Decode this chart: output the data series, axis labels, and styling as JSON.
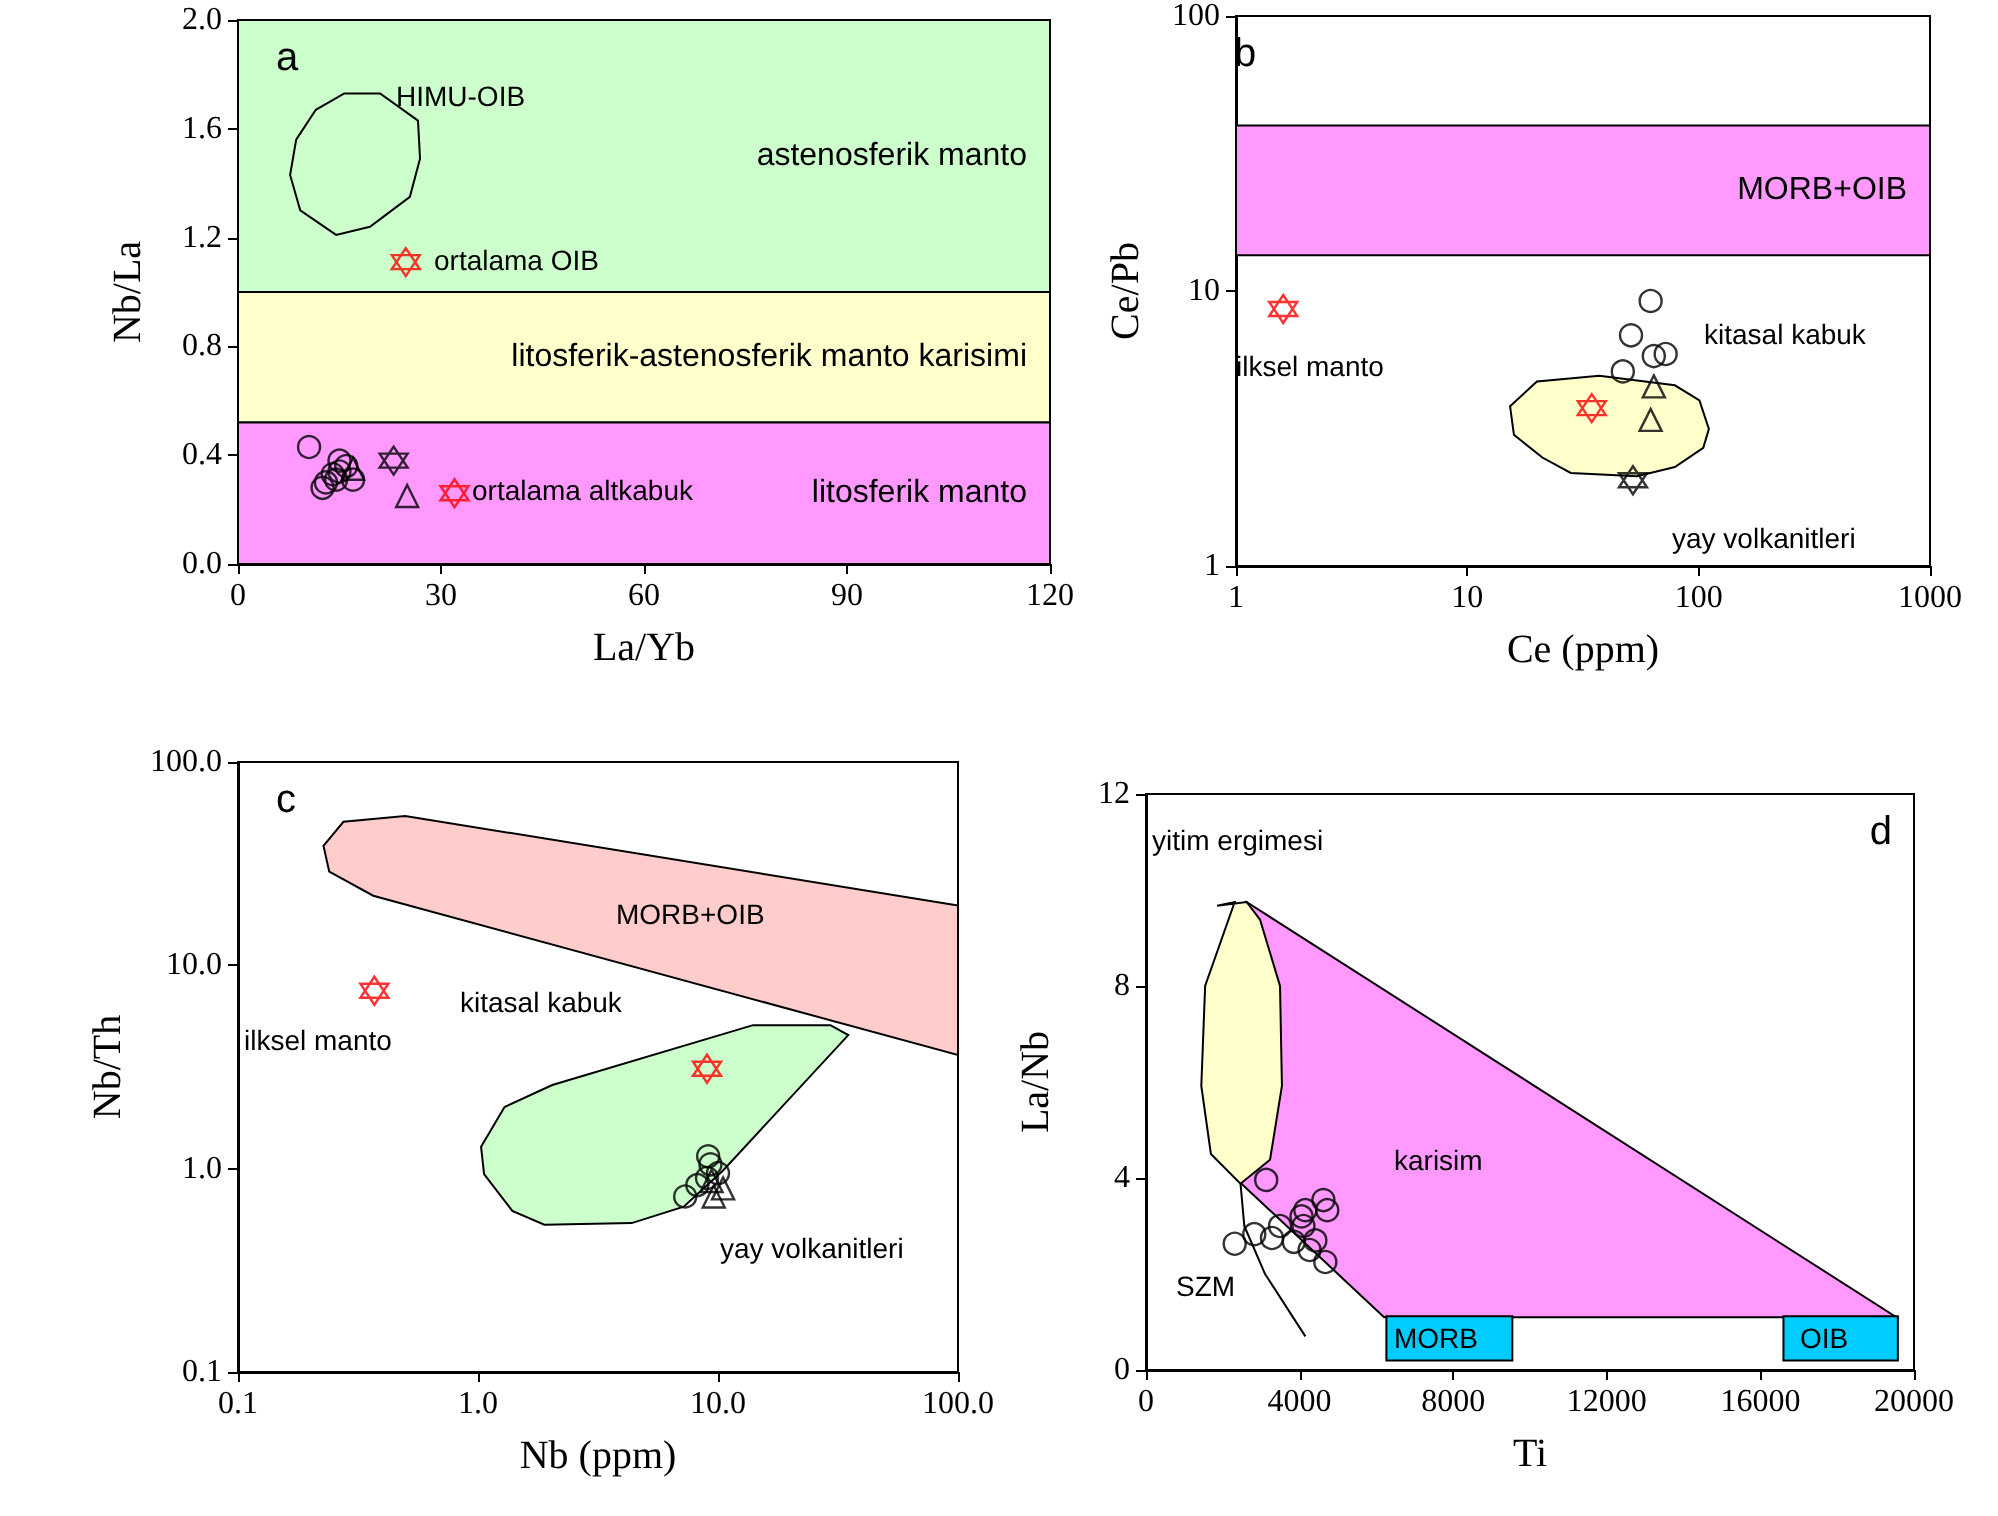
{
  "chart_data": [
    {
      "type": "scatter",
      "title": "a",
      "xlabel": "La/Yb",
      "ylabel": "Nb/La",
      "xlim": [
        0,
        120
      ],
      "ylim": [
        0,
        2
      ],
      "xticks": [
        0,
        30,
        60,
        90,
        120
      ],
      "yticks": [
        {
          "value": 0,
          "label": "0.0"
        },
        {
          "value": 0.4,
          "label": "0.4"
        },
        {
          "value": 0.8,
          "label": "0.8"
        },
        {
          "value": 1.2,
          "label": "1.2"
        },
        {
          "value": 1.6,
          "label": "1.6"
        },
        {
          "value": 2,
          "label": "2.0"
        }
      ],
      "bands": [
        {
          "axis": "y",
          "from": 1,
          "to": 2,
          "label": "astenosferik manto",
          "color": "#ccffcc"
        },
        {
          "axis": "y",
          "from": 0.52,
          "to": 1,
          "label": "litosferik-astenosferik manto karisimi",
          "color": "#ffffcc"
        },
        {
          "axis": "y",
          "from": 0,
          "to": 0.52,
          "label": "litosferik manto",
          "color": "#ff99ff"
        }
      ],
      "series": [
        {
          "type": "area",
          "color": "#ccffcc",
          "x": [
            15.7,
            21,
            26.6,
            26.9,
            25.4,
            19.5,
            14.5,
            9.2,
            7.7,
            8.6,
            11.5
          ],
          "values": [
            1.73,
            1.73,
            1.63,
            1.49,
            1.35,
            1.24,
            1.21,
            1.3,
            1.43,
            1.56,
            1.67
          ]
        },
        {
          "color": "#000000",
          "marker": "circle",
          "x": [
            13,
            14,
            15,
            12.5,
            16,
            14.5
          ],
          "values": [
            0.3,
            0.33,
            0.38,
            0.28,
            0.36,
            0.31
          ]
        },
        {
          "color": "#000000",
          "marker": "circle",
          "x": [
            10.5,
            15,
            17
          ],
          "values": [
            0.43,
            0.34,
            0.31
          ]
        },
        {
          "color": "#000000",
          "marker": "triangle",
          "x": [
            17,
            25
          ],
          "values": [
            0.35,
            0.25
          ]
        },
        {
          "color": "#000000",
          "marker": "star",
          "x": [
            23
          ],
          "values": [
            0.38
          ]
        },
        {
          "color": "#ff0000",
          "marker": "star",
          "x": [
            24.8,
            32
          ],
          "values": [
            1.11,
            0.26
          ]
        }
      ],
      "annotations": [
        "HIMU-OIB",
        "ortalama OIB",
        "ortalama altkabuk"
      ]
    },
    {
      "type": "scatter",
      "title": "b",
      "xlabel": "Ce (ppm)",
      "ylabel": "Ce/Pb",
      "log": "xy",
      "xlim": [
        1,
        1000
      ],
      "ylim": [
        1,
        100
      ],
      "xticks": [
        1,
        10,
        100,
        1000
      ],
      "yticks": [
        1,
        10,
        100
      ],
      "bands": [
        {
          "axis": "y",
          "from": 13.5,
          "to": 40,
          "label": "MORB+OIB",
          "color": "#ff99ff"
        }
      ],
      "series": [
        {
          "type": "area",
          "color": "#ffffcc",
          "x": [
            15.3,
            20,
            37.2,
            78.9,
            100.8,
            110.7,
            104.7,
            78.9,
            54.1,
            28,
            21.1,
            15.9
          ],
          "values": [
            3.81,
            4.69,
            4.92,
            4.54,
            4,
            3.15,
            2.69,
            2.29,
            2.12,
            2.18,
            2.48,
            3
          ]
        },
        {
          "color": "#000000",
          "marker": "circle",
          "x": [
            62,
            47,
            64
          ],
          "values": [
            9.2,
            5.1,
            5.8
          ]
        },
        {
          "color": "#000000",
          "marker": "circle",
          "x": [
            51,
            72
          ],
          "values": [
            6.9,
            5.9
          ]
        },
        {
          "color": "#000000",
          "marker": "triangle",
          "x": [
            64,
            62
          ],
          "values": [
            4.5,
            3.4
          ]
        },
        {
          "color": "#000000",
          "marker": "star",
          "x": [
            52
          ],
          "values": [
            2.05
          ]
        },
        {
          "color": "#ff0000",
          "marker": "star",
          "x": [
            1.6,
            34.5
          ],
          "values": [
            8.6,
            3.75
          ]
        }
      ],
      "annotations": [
        "ilksel manto",
        "kitasal kabuk",
        "yay volkanitleri"
      ]
    },
    {
      "type": "scatter",
      "title": "c",
      "xlabel": "Nb (ppm)",
      "ylabel": "Nb/Th",
      "log": "xy",
      "xlim": [
        0.1,
        100
      ],
      "ylim": [
        0.1,
        100
      ],
      "xticks": [
        {
          "value": 0.1,
          "label": "0.1"
        },
        {
          "value": 1,
          "label": "1.0"
        },
        {
          "value": 10,
          "label": "10.0"
        },
        {
          "value": 100,
          "label": "100.0"
        }
      ],
      "yticks": [
        {
          "value": 0.1,
          "label": "0.1"
        },
        {
          "value": 1,
          "label": "1.0"
        },
        {
          "value": 10,
          "label": "10.0"
        },
        {
          "value": 100,
          "label": "100.0"
        }
      ],
      "series": [
        {
          "type": "area",
          "color": "#ffcccc",
          "x": [
            0.227,
            0.275,
            0.497,
            100,
            100,
            0.366,
            0.24
          ],
          "values": [
            38.7,
            50.8,
            54.3,
            19.7,
            3.62,
            22,
            28.9
          ]
        },
        {
          "type": "area",
          "color": "#ccffcc",
          "x": [
            1.03,
            1.29,
            2.04,
            14,
            29.4,
            34.9,
            10.5,
            7.2,
            4.37,
            1.89,
            1.39,
            1.06
          ],
          "values": [
            1.28,
            2.01,
            2.58,
            5.08,
            5.08,
            4.54,
            0.98,
            0.65,
            0.54,
            0.53,
            0.62,
            0.94
          ]
        },
        {
          "color": "#000000",
          "marker": "circle",
          "x": [
            7.3,
            8.2,
            9,
            10
          ],
          "values": [
            0.73,
            0.83,
            0.9,
            0.95
          ]
        },
        {
          "color": "#000000",
          "marker": "circle",
          "x": [
            9.1,
            9.3
          ],
          "values": [
            1.15,
            1.05
          ]
        },
        {
          "color": "#000000",
          "marker": "triangle",
          "x": [
            9.6,
            9.4,
            10.5
          ],
          "values": [
            0.73,
            0.87,
            0.8
          ]
        },
        {
          "color": "#ff0000",
          "marker": "star",
          "x": [
            0.37,
            9
          ],
          "values": [
            7.5,
            3.1
          ]
        }
      ],
      "annotations": [
        "MORB+OIB",
        "ilksel manto",
        "kitasal kabuk",
        "yay volkanitleri"
      ]
    },
    {
      "type": "scatter",
      "title": "d",
      "xlabel": "Ti",
      "ylabel": "La/Nb",
      "xlim": [
        0,
        20000
      ],
      "ylim": [
        0,
        12
      ],
      "xticks": [
        0,
        4000,
        8000,
        12000,
        16000,
        20000
      ],
      "yticks": [
        0,
        4,
        8,
        12
      ],
      "series": [
        {
          "type": "area",
          "color": "#ff99ff",
          "x": [
            2620,
            19540,
            6200,
            2460
          ],
          "values": [
            9.75,
            1.1,
            1.1,
            3.9
          ]
        },
        {
          "type": "area",
          "color": "#ffffcc",
          "x": [
            2310,
            1540,
            1440,
            1690,
            2460,
            3230,
            3540,
            3490,
            2970,
            2620,
            1850
          ],
          "values": [
            9.75,
            8,
            5.92,
            4.5,
            3.88,
            4.38,
            5.92,
            8,
            9.38,
            9.75,
            9.67
          ]
        },
        {
          "type": "area",
          "color": "#00ccff",
          "x": [
            6260,
            9540,
            9540,
            6260
          ],
          "values": [
            1.12,
            1.12,
            0.2,
            0.2
          ]
        },
        {
          "type": "area",
          "color": "#00ccff",
          "x": [
            16600,
            19580,
            19580,
            16600
          ],
          "values": [
            1.12,
            1.12,
            0.2,
            0.2
          ]
        },
        {
          "type": "line",
          "color": "#000000",
          "x": [
            2460,
            2560,
            3100,
            4150
          ],
          "values": [
            3.9,
            3,
            2,
            0.7
          ]
        },
        {
          "color": "#000000",
          "marker": "circle",
          "x": [
            3130,
            2310,
            2820,
            3280,
            3490,
            3850,
            4050,
            4100,
            4260,
            4410,
            4620,
            4720,
            4670,
            4150
          ],
          "values": [
            3.96,
            2.63,
            2.83,
            2.75,
            3,
            2.67,
            3.2,
            3,
            2.5,
            2.7,
            3.54,
            3.33,
            2.25,
            3.33
          ]
        }
      ],
      "annotations": [
        "yitim ergimesi",
        "karisim",
        "SZM",
        "MORB",
        "OIB"
      ]
    }
  ]
}
